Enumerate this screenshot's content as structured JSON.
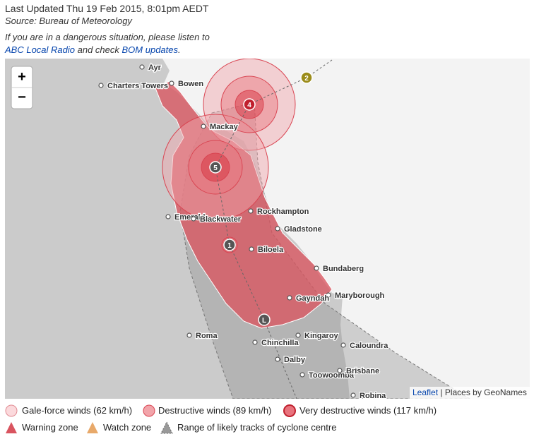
{
  "header": {
    "updated": "Last Updated Thu 19 Feb 2015, 8:01pm AEDT",
    "source": "Source: Bureau of Meteorology",
    "notice": {
      "before": "If you are in a dangerous situation, please listen to",
      "link1": "ABC Local Radio",
      "middle": "and check",
      "link2": "BOM updates",
      "after": "."
    }
  },
  "map": {
    "zoom_in": "+",
    "zoom_out": "−",
    "places": [
      "Ayr",
      "Charters Towers",
      "Bowen",
      "Mackay",
      "Emerald",
      "Blackwater",
      "Rockhampton",
      "Gladstone",
      "Biloela",
      "Bundaberg",
      "Maryborough",
      "Gayndah",
      "Kingaroy",
      "Roma",
      "Chinchilla",
      "Caloundra",
      "Dalby",
      "Toowoomba",
      "Brisbane",
      "Robina"
    ],
    "track_points": [
      "2",
      "4",
      "5",
      "1",
      "L"
    ],
    "attribution": {
      "link": "Leaflet",
      "text": "| Places by GeoNames"
    }
  },
  "legend": {
    "row1": [
      "Gale-force winds (62 km/h)",
      "Destructive winds (89 km/h)",
      "Very destructive winds (117 km/h)"
    ],
    "row2": [
      "Warning zone",
      "Watch zone",
      "Range of likely tracks of cyclone centre"
    ]
  }
}
